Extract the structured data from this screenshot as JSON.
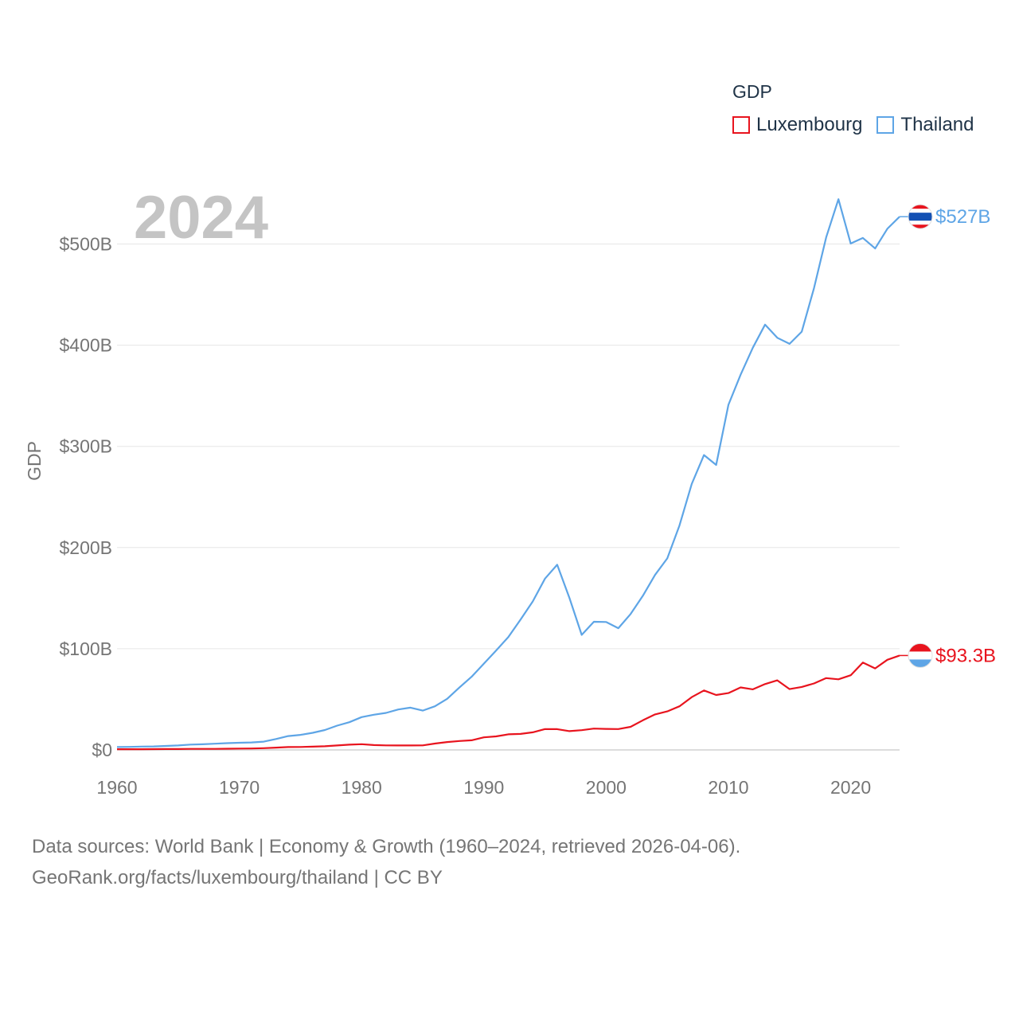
{
  "chart_data": {
    "type": "line",
    "year_label": "2024",
    "ylabel": "GDP",
    "xlim": [
      1960,
      2024
    ],
    "ylim": [
      0,
      550
    ],
    "x_ticks": [
      1960,
      1970,
      1980,
      1990,
      2000,
      2010,
      2020
    ],
    "y_ticks": [
      0,
      100,
      200,
      300,
      400,
      500
    ],
    "y_tick_labels": [
      "$0",
      "$100B",
      "$200B",
      "$300B",
      "$400B",
      "$500B"
    ],
    "legend_title": "GDP",
    "x": [
      1960,
      1961,
      1962,
      1963,
      1964,
      1965,
      1966,
      1967,
      1968,
      1969,
      1970,
      1971,
      1972,
      1973,
      1974,
      1975,
      1976,
      1977,
      1978,
      1979,
      1980,
      1981,
      1982,
      1983,
      1984,
      1985,
      1986,
      1987,
      1988,
      1989,
      1990,
      1991,
      1992,
      1993,
      1994,
      1995,
      1996,
      1997,
      1998,
      1999,
      2000,
      2001,
      2002,
      2003,
      2004,
      2005,
      2006,
      2007,
      2008,
      2009,
      2010,
      2011,
      2012,
      2013,
      2014,
      2015,
      2016,
      2017,
      2018,
      2019,
      2020,
      2021,
      2022,
      2023,
      2024
    ],
    "series": [
      {
        "name": "Luxembourg",
        "color": "#e8141e",
        "end_label": "$93.3B",
        "values": [
          0.7,
          0.7,
          0.7,
          0.8,
          0.9,
          0.9,
          1.0,
          1.0,
          1.0,
          1.2,
          1.3,
          1.4,
          1.7,
          2.3,
          2.8,
          2.9,
          3.2,
          3.6,
          4.4,
          5.2,
          5.7,
          4.8,
          4.5,
          4.4,
          4.4,
          4.5,
          6.3,
          7.8,
          8.8,
          9.5,
          12.4,
          13.4,
          15.4,
          15.8,
          17.4,
          20.6,
          20.5,
          18.6,
          19.5,
          21.1,
          20.8,
          20.6,
          22.8,
          29.3,
          35.1,
          38.1,
          43.1,
          52.2,
          58.8,
          54.3,
          56.2,
          61.8,
          59.9,
          65.1,
          68.8,
          60.1,
          62.2,
          65.7,
          71.0,
          69.8,
          73.8,
          86.4,
          80.6,
          89.1,
          93.3
        ]
      },
      {
        "name": "Thailand",
        "color": "#5ea5e6",
        "end_label": "$527B",
        "values": [
          2.8,
          3.0,
          3.3,
          3.5,
          3.9,
          4.4,
          5.3,
          5.6,
          6.1,
          6.7,
          7.1,
          7.4,
          8.2,
          10.8,
          13.7,
          14.9,
          16.9,
          19.7,
          24.0,
          27.4,
          32.4,
          34.8,
          36.6,
          40.0,
          41.8,
          38.9,
          43.1,
          50.5,
          61.7,
          72.3,
          85.3,
          98.2,
          111.5,
          128.9,
          146.7,
          169.3,
          183.0,
          150.2,
          113.7,
          126.7,
          126.4,
          120.3,
          134.3,
          152.3,
          172.9,
          189.3,
          221.8,
          262.9,
          291.4,
          281.7,
          341.1,
          370.8,
          397.6,
          420.3,
          407.3,
          401.3,
          413.4,
          456.4,
          506.6,
          544.3,
          500.5,
          506.0,
          495.6,
          515.0,
          527.0
        ]
      }
    ]
  },
  "source": {
    "line1": "Data sources: World Bank | Economy & Growth (1960–2024, retrieved 2026-04-06).",
    "line2": "GeoRank.org/facts/luxembourg/thailand | CC BY"
  }
}
